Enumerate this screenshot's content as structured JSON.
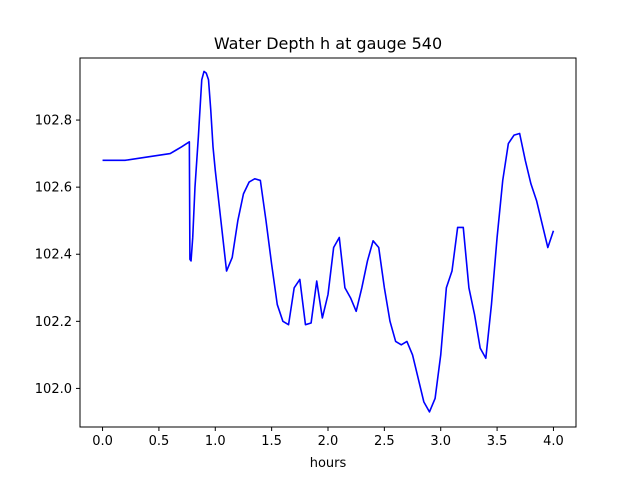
{
  "chart_data": {
    "type": "line",
    "title": "Water Depth h at gauge 540",
    "xlabel": "hours",
    "ylabel": "",
    "xlim": [
      -0.2,
      4.2
    ],
    "ylim": [
      101.885,
      102.985
    ],
    "x_ticks": [
      0.0,
      0.5,
      1.0,
      1.5,
      2.0,
      2.5,
      3.0,
      3.5,
      4.0
    ],
    "x_tick_labels": [
      "0.0",
      "0.5",
      "1.0",
      "1.5",
      "2.0",
      "2.5",
      "3.0",
      "3.5",
      "4.0"
    ],
    "y_ticks": [
      102.0,
      102.2,
      102.4,
      102.6,
      102.8
    ],
    "y_tick_labels": [
      "102.0",
      "102.2",
      "102.4",
      "102.6",
      "102.8"
    ],
    "grid": false,
    "legend": "none",
    "series": [
      {
        "color": "#0000ff",
        "x": [
          0.0,
          0.2,
          0.4,
          0.6,
          0.65,
          0.7,
          0.77,
          0.775,
          0.785,
          0.8,
          0.82,
          0.85,
          0.88,
          0.9,
          0.92,
          0.94,
          0.96,
          0.98,
          1.0,
          1.05,
          1.1,
          1.15,
          1.2,
          1.25,
          1.3,
          1.35,
          1.4,
          1.45,
          1.5,
          1.55,
          1.6,
          1.65,
          1.7,
          1.75,
          1.8,
          1.85,
          1.9,
          1.95,
          2.0,
          2.05,
          2.1,
          2.15,
          2.2,
          2.25,
          2.3,
          2.35,
          2.4,
          2.45,
          2.5,
          2.55,
          2.6,
          2.65,
          2.7,
          2.75,
          2.8,
          2.85,
          2.9,
          2.95,
          3.0,
          3.05,
          3.1,
          3.15,
          3.2,
          3.25,
          3.3,
          3.35,
          3.4,
          3.45,
          3.5,
          3.55,
          3.6,
          3.65,
          3.7,
          3.75,
          3.8,
          3.85,
          3.9,
          3.95,
          4.0
        ],
        "y": [
          102.68,
          102.68,
          102.69,
          102.7,
          102.71,
          102.72,
          102.735,
          102.385,
          102.38,
          102.45,
          102.6,
          102.75,
          102.92,
          102.945,
          102.94,
          102.92,
          102.83,
          102.72,
          102.65,
          102.5,
          102.35,
          102.39,
          102.5,
          102.58,
          102.615,
          102.625,
          102.62,
          102.5,
          102.37,
          102.25,
          102.2,
          102.19,
          102.3,
          102.325,
          102.19,
          102.195,
          102.32,
          102.21,
          102.28,
          102.42,
          102.45,
          102.3,
          102.27,
          102.23,
          102.3,
          102.38,
          102.44,
          102.42,
          102.3,
          102.2,
          102.14,
          102.13,
          102.14,
          102.1,
          102.03,
          101.96,
          101.93,
          101.97,
          102.1,
          102.3,
          102.35,
          102.48,
          102.48,
          102.3,
          102.22,
          102.12,
          102.09,
          102.25,
          102.45,
          102.62,
          102.73,
          102.755,
          102.76,
          102.68,
          102.61,
          102.56,
          102.49,
          102.42,
          102.47
        ]
      }
    ]
  }
}
